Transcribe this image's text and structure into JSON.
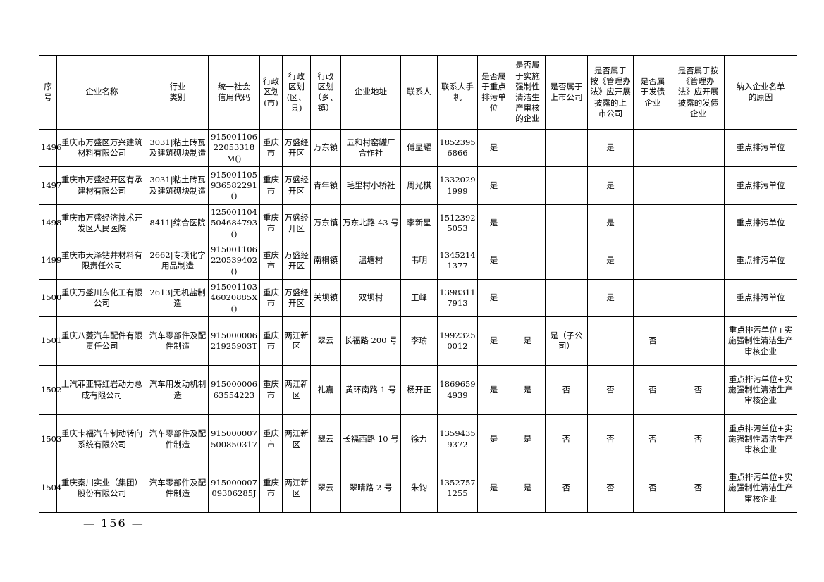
{
  "page": {
    "footer": "— 156 —"
  },
  "table": {
    "headers": [
      "序号",
      "企业名称",
      "行业\n类别",
      "统一社会\n信用代码",
      "行政\n区划\n(市)",
      "行政\n区划\n(区、\n县)",
      "行政\n区划\n（乡、\n镇）",
      "企业地址",
      "联系人",
      "联系人手\n机",
      "是否属\n于重点\n排污单\n位",
      "是否属\n于实施\n强制性\n清洁生\n产审核\n的企业",
      "是否属于\n上市公司",
      "是否属于\n按《管理办\n法》应开展\n披露的上\n市公司",
      "是否属\n于发债\n企业",
      "是否属于按\n《管理办\n法》应开展\n披露的发债\n企业",
      "纳入企业名单\n的原因"
    ],
    "rows": [
      [
        "1496",
        "重庆市万盛区万兴建筑材料有限公司",
        "3031|粘土砖瓦及建筑砌块制造",
        "91500110622053318M()",
        "重庆市",
        "万盛经开区",
        "万东镇",
        "五和村窑罐厂合作社",
        "傅显耀",
        "18523956866",
        "是",
        "",
        "",
        "是",
        "",
        "",
        "重点排污单位"
      ],
      [
        "1497",
        "重庆市万盛经开区有承建材有限公司",
        "3031|粘土砖瓦及建筑砌块制造",
        "915001105936582291()",
        "重庆市",
        "万盛经开区",
        "青年镇",
        "毛里村小桥社",
        "周光棋",
        "13320291999",
        "是",
        "",
        "",
        "是",
        "",
        "",
        "重点排污单位"
      ],
      [
        "1498",
        "重庆市万盛经济技术开发区人民医院",
        "8411|综合医院",
        "125001104504684793()",
        "重庆市",
        "万盛经开区",
        "万东镇",
        "万东北路 43 号",
        "李新星",
        "15123925053",
        "是",
        "",
        "",
        "是",
        "",
        "",
        "重点排污单位"
      ],
      [
        "1499",
        "重庆市天泽钻井材料有限责任公司",
        "2662|专项化学用品制造",
        "915001106220539402()",
        "重庆市",
        "万盛经开区",
        "南桐镇",
        "温塘村",
        "韦明",
        "13452141377",
        "是",
        "",
        "",
        "是",
        "",
        "",
        "重点排污单位"
      ],
      [
        "1500",
        "重庆万盛川东化工有限公司",
        "2613|无机盐制造",
        "91500110346020885X()",
        "重庆市",
        "万盛经开区",
        "关坝镇",
        "双坝村",
        "王峰",
        "13983117913",
        "是",
        "",
        "",
        "是",
        "",
        "",
        "重点排污单位"
      ],
      [
        "1501",
        "重庆八菱汽车配件有限责任公司",
        "汽车零部件及配件制造",
        "91500000621925903T",
        "重庆市",
        "两江新区",
        "翠云",
        "长福路 200 号",
        "李瑜",
        "19923250012",
        "是",
        "是",
        "是（子公司）",
        "",
        "否",
        "",
        "重点排污单位+实施强制性清洁生产审核企业"
      ],
      [
        "1502",
        "上汽菲亚特红岩动力总成有限公司",
        "汽车用发动机制造",
        "91500000663554223",
        "重庆市",
        "两江新区",
        "礼嘉",
        "黄环南路 1 号",
        "杨开正",
        "18696594939",
        "是",
        "是",
        "否",
        "否",
        "否",
        "否",
        "重点排污单位+实施强制性清洁生产审核企业"
      ],
      [
        "1503",
        "重庆卡福汽车制动转向系统有限公司",
        "汽车零部件及配件制造",
        "915000007500850317",
        "重庆市",
        "两江新区",
        "翠云",
        "长福西路 10 号",
        "徐力",
        "13594359372",
        "是",
        "是",
        "否",
        "否",
        "否",
        "否",
        "重点排污单位+实施强制性清洁生产审核企业"
      ],
      [
        "1504",
        "重庆秦川实业（集团）股份有限公司",
        "汽车零部件及配件制造",
        "91500000709306285J",
        "重庆市",
        "两江新区",
        "翠云",
        "翠晴路 2 号",
        "朱钧",
        "13527571255",
        "是",
        "是",
        "否",
        "否",
        "否",
        "否",
        "重点排污单位+实施强制性清洁生产审核企业"
      ]
    ]
  }
}
